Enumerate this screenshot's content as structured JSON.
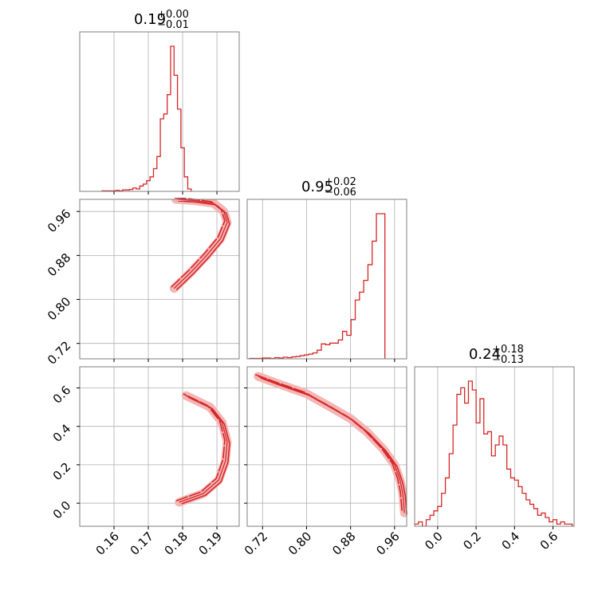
{
  "chart_data": {
    "type": "corner",
    "color": "#d62728",
    "grid": true,
    "parameters": [
      {
        "title": {
          "median": "0.19",
          "upper": "+0.00",
          "lower": "−0.01"
        },
        "range": [
          0.15,
          0.1965
        ],
        "ticks": [
          0.16,
          0.17,
          0.18,
          0.19
        ],
        "tick_labels": [
          "0.16",
          "0.17",
          "0.18",
          "0.19"
        ]
      },
      {
        "title": {
          "median": "0.95",
          "upper": "+0.02",
          "lower": "−0.06"
        },
        "range": [
          0.692,
          0.982
        ],
        "ticks": [
          0.72,
          0.8,
          0.88,
          0.96
        ],
        "tick_labels": [
          "0.72",
          "0.80",
          "0.88",
          "0.96"
        ]
      },
      {
        "title": {
          "median": "0.24",
          "upper": "+0.18",
          "lower": "−0.13"
        },
        "range": [
          -0.12,
          0.71
        ],
        "ticks": [
          0.0,
          0.2,
          0.4,
          0.6
        ],
        "tick_labels": [
          "0.0",
          "0.2",
          "0.4",
          "0.6"
        ]
      }
    ],
    "histograms": [
      {
        "param": 0,
        "bin_start": 0.1565,
        "bin_width": 0.001,
        "counts": [
          1,
          1,
          1,
          1,
          2,
          1,
          3,
          3,
          4,
          7,
          5,
          11,
          15,
          22,
          30,
          47,
          72,
          150,
          160,
          200,
          300,
          240,
          170,
          90,
          30,
          5
        ]
      },
      {
        "param": 1,
        "bin_start": 0.696,
        "bin_width": 0.0077,
        "counts": [
          1,
          1,
          1,
          2,
          2,
          1,
          3,
          2,
          4,
          3,
          5,
          6,
          8,
          10,
          12,
          15,
          22,
          38,
          36,
          40,
          40,
          48,
          70,
          60,
          100,
          150,
          170,
          200,
          240,
          300,
          370,
          370
        ]
      },
      {
        "param": 2,
        "bin_start": -0.12,
        "bin_width": 0.02,
        "counts": [
          1,
          2,
          0,
          3,
          5,
          7,
          9,
          15,
          22,
          33,
          46,
          60,
          63,
          56,
          66,
          62,
          47,
          58,
          42,
          43,
          32,
          37,
          41,
          37,
          26,
          22,
          21,
          18,
          15,
          12,
          10,
          8,
          5,
          6,
          4,
          2,
          3,
          1,
          2,
          1,
          1,
          0
        ]
      }
    ],
    "joint_curves": [
      {
        "x_param": 0,
        "y_param": 1,
        "points": [
          [
            0.1775,
            0.82
          ],
          [
            0.1825,
            0.85
          ],
          [
            0.187,
            0.88
          ],
          [
            0.191,
            0.91
          ],
          [
            0.193,
            0.94
          ],
          [
            0.192,
            0.96
          ],
          [
            0.189,
            0.975
          ],
          [
            0.183,
            0.98
          ],
          [
            0.178,
            0.982
          ]
        ]
      },
      {
        "x_param": 0,
        "y_param": 2,
        "points": [
          [
            0.179,
            0.005
          ],
          [
            0.186,
            0.05
          ],
          [
            0.1905,
            0.12
          ],
          [
            0.1925,
            0.22
          ],
          [
            0.193,
            0.32
          ],
          [
            0.1915,
            0.42
          ],
          [
            0.188,
            0.5
          ],
          [
            0.181,
            0.56
          ]
        ]
      },
      {
        "x_param": 1,
        "y_param": 2,
        "points": [
          [
            0.712,
            0.66
          ],
          [
            0.75,
            0.62
          ],
          [
            0.8,
            0.57
          ],
          [
            0.85,
            0.49
          ],
          [
            0.88,
            0.44
          ],
          [
            0.91,
            0.37
          ],
          [
            0.94,
            0.28
          ],
          [
            0.96,
            0.2
          ],
          [
            0.97,
            0.12
          ],
          [
            0.975,
            0.05
          ],
          [
            0.978,
            -0.05
          ]
        ]
      }
    ]
  }
}
